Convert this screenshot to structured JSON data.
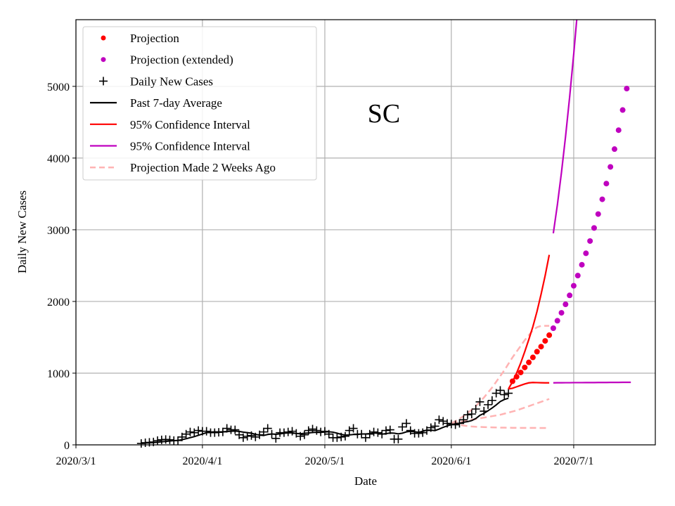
{
  "chart_data": {
    "type": "line",
    "title": "SC",
    "xlabel": "Date",
    "ylabel": "Daily New Cases",
    "x_unit": "days since 2020/3/1",
    "xlim": [
      0,
      142
    ],
    "ylim": [
      0,
      5930
    ],
    "grid": true,
    "legend_placement": "top-left",
    "xticks": [
      {
        "day": 0,
        "label": "2020/3/1"
      },
      {
        "day": 31,
        "label": "2020/4/1"
      },
      {
        "day": 61,
        "label": "2020/5/1"
      },
      {
        "day": 92,
        "label": "2020/6/1"
      },
      {
        "day": 122,
        "label": "2020/7/1"
      }
    ],
    "yticks": [
      0,
      1000,
      2000,
      3000,
      4000,
      5000
    ],
    "colors": {
      "projection": "#ff0000",
      "extended": "#bf00bf",
      "daily": "#000000",
      "avg": "#000000",
      "old": "#ffb3b3",
      "grid": "#b0b0b0"
    },
    "legend": [
      {
        "label": "Projection",
        "kind": "dot",
        "color": "#ff0000"
      },
      {
        "label": "Projection (extended)",
        "kind": "dot",
        "color": "#bf00bf"
      },
      {
        "label": "Daily New Cases",
        "kind": "plus",
        "color": "#000000"
      },
      {
        "label": "Past 7-day Average",
        "kind": "line",
        "color": "#000000"
      },
      {
        "label": "95% Confidence Interval",
        "kind": "line",
        "color": "#ff0000"
      },
      {
        "label": "95% Confidence Interval",
        "kind": "line",
        "color": "#bf00bf"
      },
      {
        "label": "Projection Made 2 Weeks Ago",
        "kind": "dash",
        "color": "#ffb3b3"
      }
    ],
    "daily_new_cases": {
      "start_day": 16,
      "values": [
        20,
        30,
        35,
        40,
        60,
        70,
        75,
        70,
        60,
        60,
        110,
        150,
        180,
        170,
        200,
        190,
        190,
        170,
        170,
        175,
        180,
        230,
        210,
        210,
        140,
        100,
        120,
        130,
        110,
        140,
        180,
        230,
        150,
        90,
        170,
        170,
        180,
        190,
        160,
        120,
        140,
        200,
        220,
        200,
        180,
        190,
        150,
        100,
        100,
        110,
        120,
        200,
        230,
        150,
        150,
        100,
        150,
        180,
        170,
        150,
        200,
        210,
        80,
        80,
        250,
        300,
        200,
        160,
        160,
        170,
        200,
        240,
        260,
        350,
        330,
        300,
        290,
        280,
        300,
        350,
        420,
        430,
        500,
        600,
        470,
        560,
        620,
        720,
        760,
        700,
        720
      ]
    },
    "projection": {
      "start_day": 107,
      "values": [
        887,
        950,
        1010,
        1080,
        1150,
        1220,
        1300,
        1370,
        1450,
        1530
      ]
    },
    "projection_extended": {
      "start_day": 117,
      "values": [
        1627,
        1731,
        1842,
        1960,
        2085,
        2219,
        2361,
        2512,
        2672,
        2843,
        3025,
        3219,
        3425,
        3644,
        3877,
        4125,
        4389,
        4670,
        4969
      ]
    },
    "ci_red_upper": {
      "start_day": 106,
      "values": [
        780,
        880,
        1000,
        1140,
        1300,
        1470,
        1650,
        1860,
        2100,
        2360,
        2650
      ]
    },
    "ci_red_lower": {
      "start_day": 106,
      "values": [
        780,
        790,
        810,
        830,
        850,
        865,
        870,
        868,
        866,
        865,
        865
      ]
    },
    "ci_purple_upper": {
      "start_day": 117,
      "values": [
        2950,
        3350,
        3800,
        4300,
        4850,
        5450,
        6100
      ]
    },
    "ci_purple_lower": {
      "start_day": 117,
      "values": [
        865,
        866,
        866,
        867,
        867,
        868,
        868,
        868,
        869,
        869,
        869,
        870,
        870,
        870,
        871,
        871,
        871,
        872,
        872,
        872
      ]
    },
    "old_projection": [
      {
        "start_day": 92,
        "values": [
          300,
          330,
          365,
          400,
          445,
          490,
          540,
          600,
          660,
          730,
          800,
          880,
          960,
          1040,
          1130,
          1220,
          1300,
          1380,
          1460,
          1530,
          1600,
          1640,
          1660,
          1660,
          1660
        ]
      },
      {
        "start_day": 92,
        "values": [
          300,
          310,
          320,
          330,
          340,
          350,
          360,
          370,
          380,
          390,
          400,
          410,
          420,
          435,
          450,
          465,
          480,
          500,
          520,
          540,
          560,
          580,
          600,
          620,
          640
        ]
      },
      {
        "start_day": 92,
        "values": [
          300,
          290,
          280,
          270,
          262,
          256,
          252,
          250,
          248,
          246,
          244,
          242,
          240,
          240,
          239,
          238,
          238,
          237,
          237,
          236,
          236,
          236,
          235,
          235,
          235
        ]
      }
    ]
  }
}
